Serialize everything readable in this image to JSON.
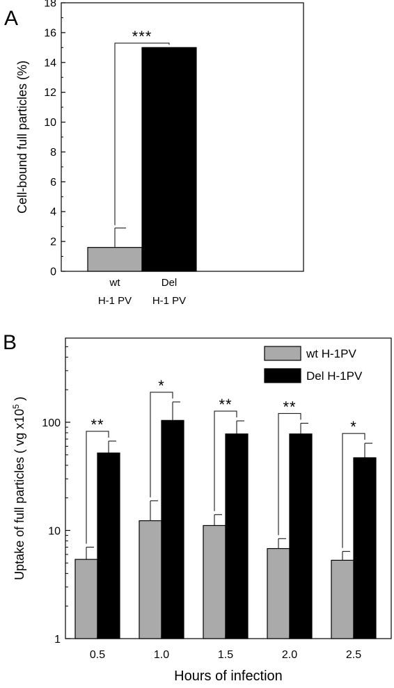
{
  "colors": {
    "wt": "#aaaaaa",
    "del": "#000000",
    "axis": "#000000"
  },
  "chart_data": [
    {
      "panel": "A",
      "type": "bar",
      "ylabel": "Cell-bound full particles (%)",
      "ylim": [
        0,
        18
      ],
      "yticks": [
        0,
        2,
        4,
        6,
        8,
        10,
        12,
        14,
        16,
        18
      ],
      "categories": [
        {
          "line1": "wt",
          "line2": "H-1 PV"
        },
        {
          "line1": "Del",
          "line2": "H-1 PV"
        }
      ],
      "values": [
        1.6,
        15.0
      ],
      "errors": [
        1.3,
        0.0
      ],
      "bar_colors": [
        "wt",
        "del"
      ],
      "significance": [
        {
          "between": [
            0,
            1
          ],
          "label": "***"
        }
      ]
    },
    {
      "panel": "B",
      "type": "bar",
      "xlabel": "Hours of infection",
      "ylabel": "Uptake of full particles ( vg x10",
      "ylabel_sup": "5",
      "ylabel_end": " )",
      "yscale": "log",
      "ylim": [
        1,
        600
      ],
      "yticks": [
        1,
        10,
        100
      ],
      "categories": [
        "0.5",
        "1.0",
        "1.5",
        "2.0",
        "2.5"
      ],
      "series": [
        {
          "name": "wt H-1PV",
          "color": "wt",
          "values": [
            5.4,
            12.3,
            11.1,
            6.8,
            5.3
          ],
          "errors": [
            1.6,
            6.5,
            2.9,
            1.6,
            1.1
          ]
        },
        {
          "name": "Del H-1PV",
          "color": "del",
          "values": [
            52,
            104,
            78,
            78,
            47
          ],
          "errors": [
            15,
            50,
            25,
            20,
            17
          ]
        }
      ],
      "significance": [
        "**",
        "*",
        "**",
        "**",
        "*"
      ],
      "legend": "top-right"
    }
  ]
}
